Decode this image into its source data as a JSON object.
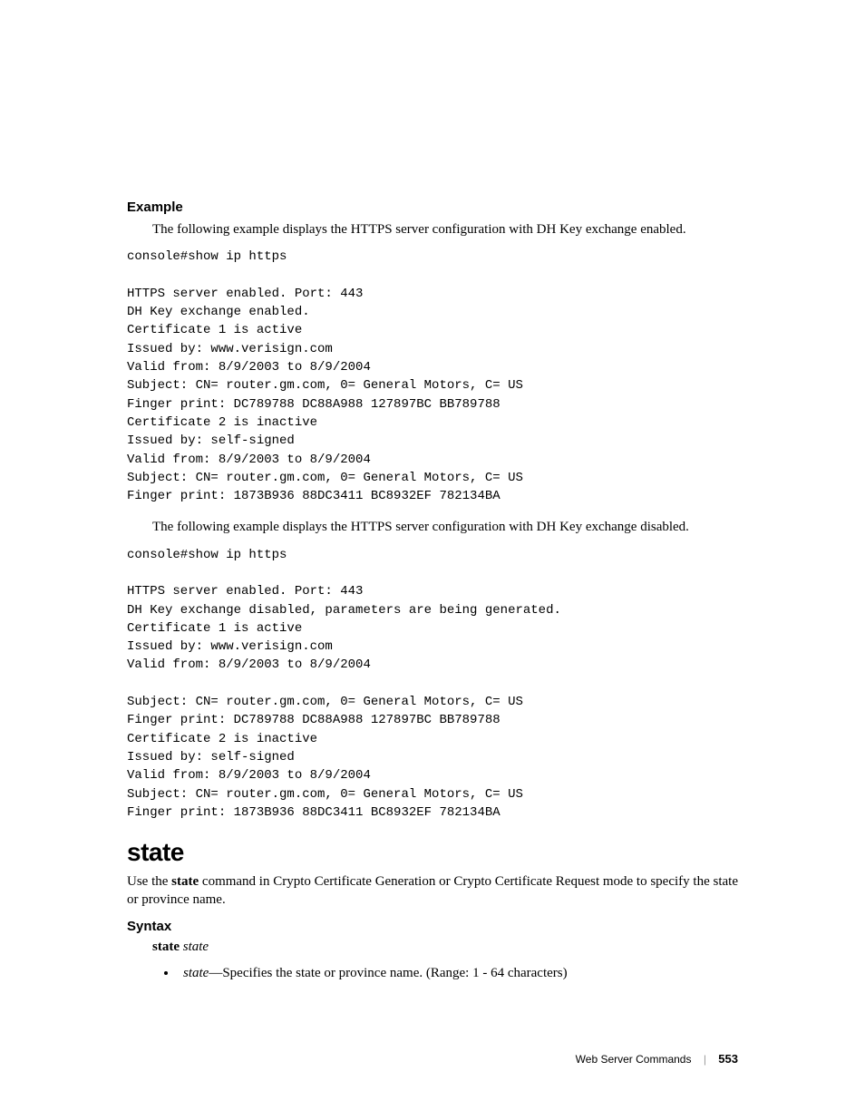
{
  "sections": {
    "example": {
      "heading": "Example",
      "intro1": "The following example displays the HTTPS server configuration with DH Key exchange enabled.",
      "code1": "console#show ip https\n\nHTTPS server enabled. Port: 443\nDH Key exchange enabled.\nCertificate 1 is active\nIssued by: www.verisign.com\nValid from: 8/9/2003 to 8/9/2004\nSubject: CN= router.gm.com, 0= General Motors, C= US\nFinger print: DC789788 DC88A988 127897BC BB789788\nCertificate 2 is inactive\nIssued by: self-signed\nValid from: 8/9/2003 to 8/9/2004\nSubject: CN= router.gm.com, 0= General Motors, C= US\nFinger print: 1873B936 88DC3411 BC8932EF 782134BA",
      "intro2": "The following example displays the HTTPS server configuration with DH Key exchange disabled.",
      "code2": "console#show ip https\n\nHTTPS server enabled. Port: 443\nDH Key exchange disabled, parameters are being generated.\nCertificate 1 is active\nIssued by: www.verisign.com\nValid from: 8/9/2003 to 8/9/2004\n\nSubject: CN= router.gm.com, 0= General Motors, C= US\nFinger print: DC789788 DC88A988 127897BC BB789788\nCertificate 2 is inactive\nIssued by: self-signed\nValid from: 8/9/2003 to 8/9/2004\nSubject: CN= router.gm.com, 0= General Motors, C= US\nFinger print: 1873B936 88DC3411 BC8932EF 782134BA"
    },
    "state": {
      "heading": "state",
      "desc_prefix": "Use the ",
      "desc_bold": "state",
      "desc_suffix": " command in Crypto Certificate Generation or Crypto Certificate Request mode to specify the state or province name.",
      "syntax_heading": "Syntax",
      "syntax_keyword": "state",
      "syntax_param": "state",
      "param_name": "state",
      "param_desc": "—Specifies the state or province name. (Range: 1 - 64 characters)"
    }
  },
  "footer": {
    "section_title": "Web Server Commands",
    "page_number": "553"
  },
  "colors": {
    "text": "#000000",
    "background": "#ffffff",
    "separator": "#999999"
  },
  "typography": {
    "body_font": "Georgia, serif",
    "heading_font": "Arial, sans-serif",
    "code_font": "Courier New, monospace",
    "body_size_pt": 11,
    "code_size_pt": 10,
    "section_heading_size_pt": 11,
    "command_heading_size_pt": 21
  }
}
